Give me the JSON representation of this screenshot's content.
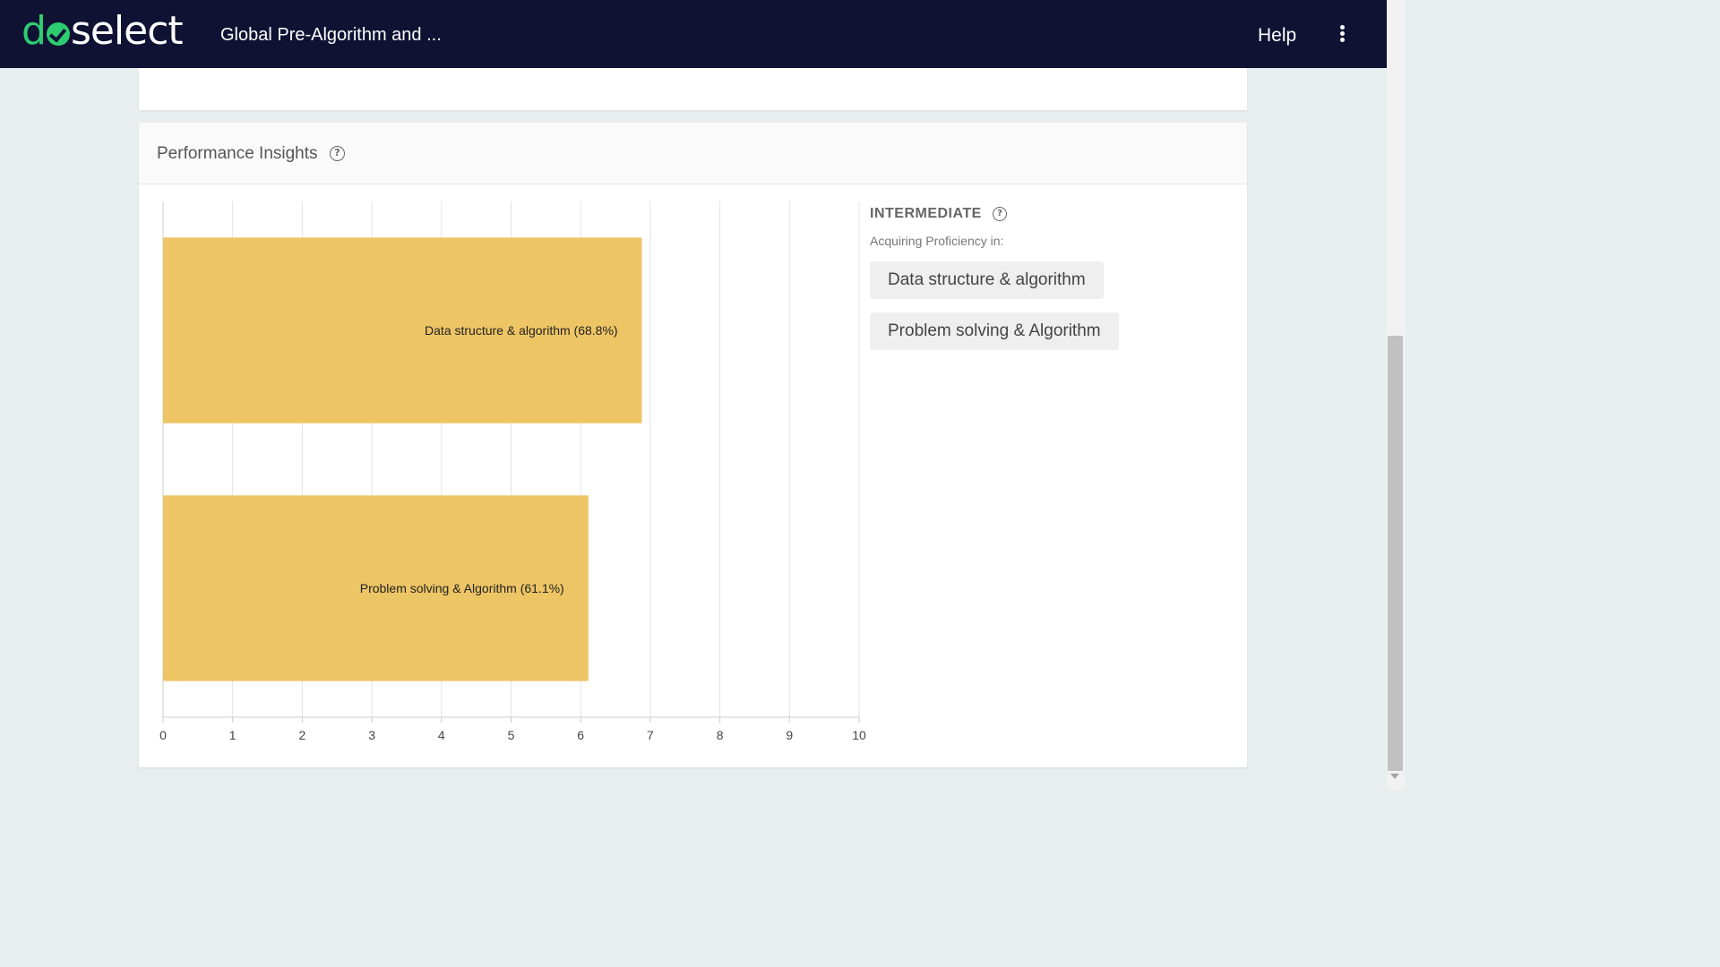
{
  "header": {
    "app_title": "Global Pre-Algorithm and ...",
    "help_label": "Help",
    "logo_text": "doselect",
    "logo_parts": [
      "d",
      "select"
    ]
  },
  "insights": {
    "title": "Performance Insights",
    "level": "INTERMEDIATE",
    "subtext": "Acquiring Proficiency in:",
    "chips": [
      "Data structure & algorithm",
      "Problem solving & Algorithm"
    ]
  },
  "chart_data": {
    "type": "bar",
    "orientation": "horizontal",
    "categories": [
      "Data structure & algorithm (68.8%)",
      "Problem solving & Algorithm (61.1%)"
    ],
    "values": [
      6.88,
      6.11
    ],
    "xlim": [
      0,
      10
    ],
    "xticks": [
      "0",
      "1",
      "2",
      "3",
      "4",
      "5",
      "6",
      "7",
      "8",
      "9",
      "10"
    ],
    "grid": true,
    "bar_color": "#eec565"
  },
  "colors": {
    "topbar": "#0f1233",
    "brand_green": "#2ecc71",
    "background": "#e8edf0"
  }
}
